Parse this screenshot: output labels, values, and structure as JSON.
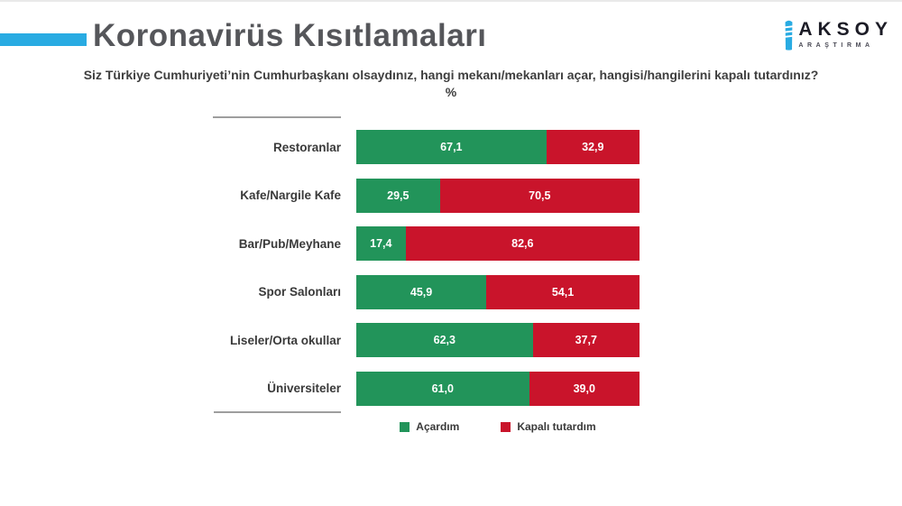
{
  "accent_color": "#29ABE2",
  "header": {
    "title": "Koronavirüs Kısıtlamaları"
  },
  "logo": {
    "name": "AKSOY",
    "subtitle": "ARAŞTIRMA",
    "icon_color": "#29ABE2"
  },
  "question": "Siz Türkiye Cumhuriyeti’nin Cumhurbaşkanı olsaydınız, hangi mekanı/mekanları açar, hangisi/hangilerini kapalı tutardınız?",
  "unit_label": "%",
  "chart_data": {
    "type": "bar",
    "orientation": "horizontal",
    "stacked": true,
    "x_range": [
      0,
      100
    ],
    "grid": false,
    "legend_position": "bottom",
    "categories": [
      "Restoranlar",
      "Kafe/Nargile Kafe",
      "Bar/Pub/Meyhane",
      "Spor Salonları",
      "Liseler/Orta okullar",
      "Üniversiteler"
    ],
    "series": [
      {
        "name": "Açardım",
        "color": "#22945A",
        "values": [
          67.1,
          29.5,
          17.4,
          45.9,
          62.3,
          61.0
        ]
      },
      {
        "name": "Kapalı tutardım",
        "color": "#C9142B",
        "values": [
          32.9,
          70.5,
          82.6,
          54.1,
          37.7,
          39.0
        ]
      }
    ],
    "value_labels": {
      "open": [
        "67,1",
        "29,5",
        "17,4",
        "45,9",
        "62,3",
        "61,0"
      ],
      "closed": [
        "32,9",
        "70,5",
        "82,6",
        "54,1",
        "37,7",
        "39,0"
      ]
    },
    "legend": [
      {
        "label": "Açardım",
        "color": "#22945A"
      },
      {
        "label": "Kapalı tutardım",
        "color": "#C9142B"
      }
    ]
  }
}
